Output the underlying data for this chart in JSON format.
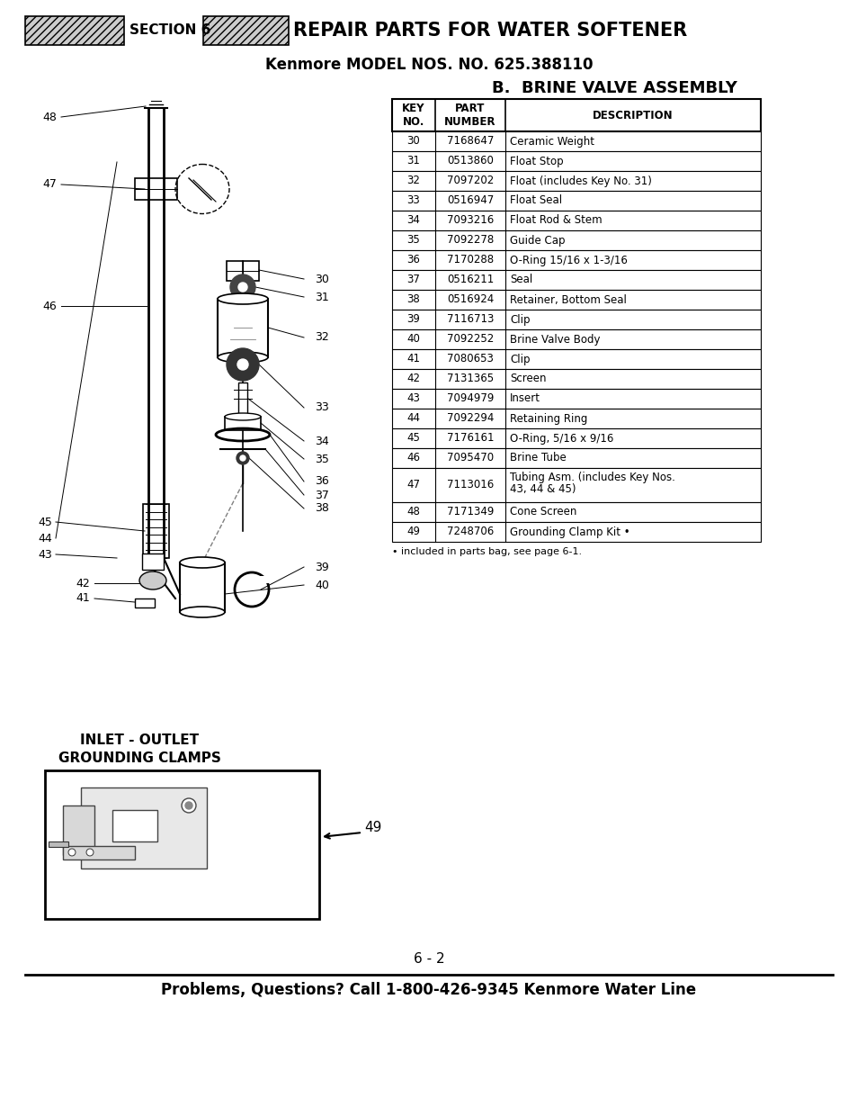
{
  "page_title": "REPAIR PARTS FOR WATER SOFTENER",
  "section_label": "SECTION 6",
  "model_line": "Kenmore MODEL NOS. NO. 625.388110",
  "assembly_title": "B.  BRINE VALVE ASSEMBLY",
  "table_headers": [
    "KEY\nNO.",
    "PART\nNUMBER",
    "DESCRIPTION"
  ],
  "table_rows": [
    [
      "30",
      "7168647",
      "Ceramic Weight"
    ],
    [
      "31",
      "0513860",
      "Float Stop"
    ],
    [
      "32",
      "7097202",
      "Float (includes Key No. 31)"
    ],
    [
      "33",
      "0516947",
      "Float Seal"
    ],
    [
      "34",
      "7093216",
      "Float Rod & Stem"
    ],
    [
      "35",
      "7092278",
      "Guide Cap"
    ],
    [
      "36",
      "7170288",
      "O-Ring 15/16 x 1-3/16"
    ],
    [
      "37",
      "0516211",
      "Seal"
    ],
    [
      "38",
      "0516924",
      "Retainer, Bottom Seal"
    ],
    [
      "39",
      "7116713",
      "Clip"
    ],
    [
      "40",
      "7092252",
      "Brine Valve Body"
    ],
    [
      "41",
      "7080653",
      "Clip"
    ],
    [
      "42",
      "7131365",
      "Screen"
    ],
    [
      "43",
      "7094979",
      "Insert"
    ],
    [
      "44",
      "7092294",
      "Retaining Ring"
    ],
    [
      "45",
      "7176161",
      "O-Ring, 5/16 x 9/16"
    ],
    [
      "46",
      "7095470",
      "Brine Tube"
    ],
    [
      "47",
      "7113016",
      "Tubing Asm. (includes Key Nos.\n43, 44 & 45)"
    ],
    [
      "48",
      "7171349",
      "Cone Screen"
    ],
    [
      "49",
      "7248706",
      "Grounding Clamp Kit •"
    ]
  ],
  "footnote": "• included in parts bag, see page 6-1.",
  "inlet_outlet_label": "INLET - OUTLET\nGROUNDING CLAMPS",
  "part49_label": "49",
  "page_number": "6 - 2",
  "footer_text": "Problems, Questions? Call 1-800-426-9345 Kenmore Water Line",
  "bg_color": "#ffffff",
  "text_color": "#000000",
  "hatch_color": "#888888",
  "diagram_left_labels": [
    [
      "48",
      65,
      130
    ],
    [
      "47",
      65,
      205
    ],
    [
      "46",
      65,
      340
    ],
    [
      "45",
      60,
      580
    ],
    [
      "44",
      60,
      598
    ],
    [
      "43",
      60,
      616
    ]
  ],
  "diagram_right_labels": [
    [
      "30",
      335,
      325
    ],
    [
      "31",
      335,
      343
    ],
    [
      "32",
      335,
      380
    ],
    [
      "33",
      335,
      460
    ],
    [
      "34",
      335,
      498
    ],
    [
      "35",
      335,
      520
    ],
    [
      "36",
      335,
      548
    ],
    [
      "37",
      335,
      562
    ],
    [
      "38",
      335,
      576
    ],
    [
      "39",
      335,
      626
    ],
    [
      "40",
      335,
      645
    ],
    [
      "41",
      110,
      662
    ],
    [
      "42",
      110,
      645
    ]
  ]
}
